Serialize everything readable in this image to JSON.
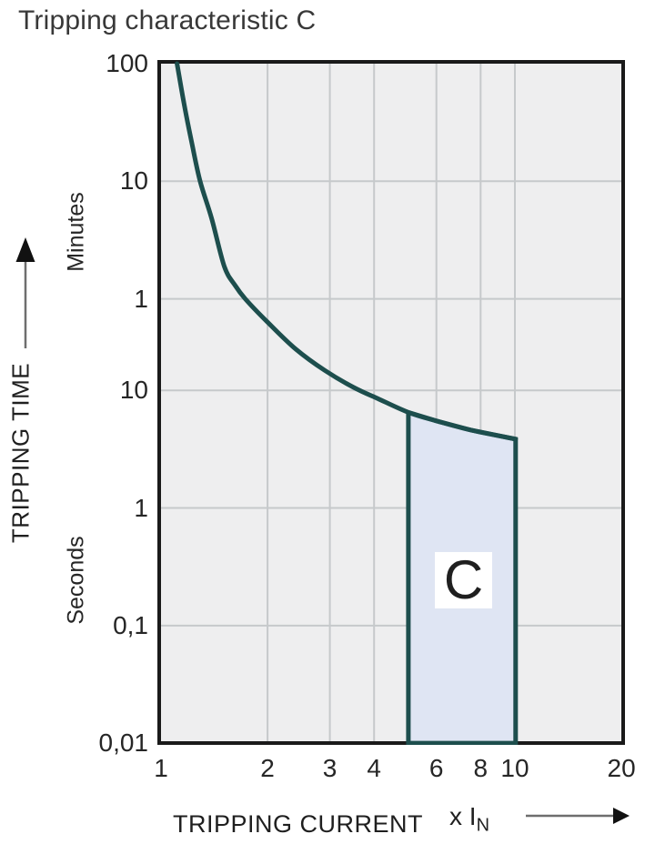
{
  "title": "Tripping characteristic C",
  "chart_data": {
    "type": "line",
    "scale": "log-log",
    "title": "Tripping characteristic C",
    "x_axis": {
      "label": "TRIPPING CURRENT",
      "unit_prefix": "x I",
      "unit_sub": "N",
      "ticks": [
        1,
        2,
        3,
        4,
        6,
        8,
        10,
        20
      ],
      "gridlines": [
        2,
        3,
        4,
        6,
        8,
        10
      ],
      "range": [
        1,
        20
      ]
    },
    "y_axis": {
      "label": "TRIPPING TIME",
      "upper_unit": "Minutes",
      "lower_unit": "Seconds",
      "ticks": [
        {
          "label": "100",
          "seconds": 6000
        },
        {
          "label": "10",
          "seconds": 600
        },
        {
          "label": "1",
          "seconds": 60
        },
        {
          "label": "10",
          "seconds": 10
        },
        {
          "label": "1",
          "seconds": 1
        },
        {
          "label": "0,1",
          "seconds": 0.1
        },
        {
          "label": "0,01",
          "seconds": 0.01
        }
      ],
      "gridline_seconds": [
        600,
        60,
        10,
        1,
        0.1
      ],
      "range_seconds": [
        0.01,
        6000
      ]
    },
    "series": [
      {
        "name": "tripping-curve",
        "points_x_t": [
          [
            1.11,
            6000
          ],
          [
            1.16,
            2800
          ],
          [
            1.22,
            1300
          ],
          [
            1.29,
            600
          ],
          [
            1.39,
            290
          ],
          [
            1.51,
            113
          ],
          [
            1.62,
            78
          ],
          [
            1.73,
            60
          ],
          [
            2.0,
            38
          ],
          [
            2.4,
            22.5
          ],
          [
            2.9,
            14.8
          ],
          [
            3.5,
            10.6
          ],
          [
            4.1,
            8.5
          ],
          [
            5.0,
            6.5
          ],
          [
            6.0,
            5.5
          ],
          [
            7.5,
            4.6
          ],
          [
            10.05,
            3.85
          ]
        ]
      }
    ],
    "band": {
      "label": "C",
      "x_start": 5,
      "x_end": 10.05,
      "t_bottom": 0.01,
      "top_points_x_t": [
        [
          5,
          6.5
        ],
        [
          6,
          5.5
        ],
        [
          7.5,
          4.6
        ],
        [
          10.05,
          3.85
        ]
      ]
    },
    "colors": {
      "curve": "#1d4e4d",
      "band_fill": "#dfe5f3",
      "plot_bg": "#eeeeef",
      "gridline": "#c6c9cb",
      "border": "#1a1a1a",
      "text": "#333333"
    }
  }
}
